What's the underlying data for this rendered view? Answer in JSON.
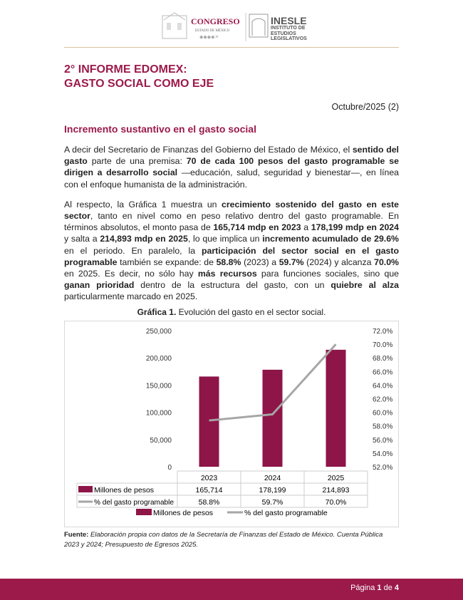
{
  "header": {
    "logo_congreso": "CONGRESO",
    "logo_congreso_sub": "ESTADO DE MÉXICO",
    "logo_inesle": "INESLE",
    "logo_inesle_sub": "INSTITUTO DE ESTUDIOS LEGISLATIVOS"
  },
  "title_line1": "2° INFORME EDOMEX:",
  "title_line2": "GASTO SOCIAL COMO EJE",
  "date": "Octubre/2025 (2)",
  "section_title": "Incremento sustantivo en el gasto social",
  "para1": [
    "A decir del Secretario de Finanzas del Gobierno del Estado de México, el ",
    "sentido del gasto",
    " parte de una premisa: ",
    "70 de cada 100 pesos del gasto programable se dirigen a desarrollo social",
    " —educación, salud, seguridad y bienestar—, en línea con el enfoque humanista de la administración."
  ],
  "para2": [
    "Al respecto, la Gráfica 1 muestra un ",
    "crecimiento sostenido del gasto en este sector",
    ", tanto en nivel como en peso relativo dentro del gasto programable. En términos absolutos, el monto pasa de ",
    "165,714 mdp en 2023",
    " a ",
    "178,199 mdp en 2024",
    " y salta a ",
    "214,893 mdp en 2025",
    ", lo que implica un ",
    "incremento acumulado de 29.6%",
    " en el periodo. En paralelo, la ",
    "participación del sector social en el gasto programable",
    " también se expande: de ",
    "58.8%",
    " (2023) a ",
    "59.7%",
    " (2024) y alcanza ",
    "70.0%",
    " en 2025. Es decir, no sólo hay ",
    "más recursos",
    " para funciones sociales, sino que ",
    "ganan prioridad",
    " dentro de la estructura del gasto, con un ",
    "quiebre al alza",
    " particularmente marcado en 2025."
  ],
  "caption_bold": "Gráfica 1.",
  "caption_text": " Evolución del gasto en el sector social.",
  "chart_data": {
    "type": "bar+line",
    "categories": [
      "2023",
      "2024",
      "2025"
    ],
    "series": [
      {
        "name": "Millones de pesos",
        "type": "bar",
        "axis": "left",
        "values": [
          165714,
          178199,
          214893
        ],
        "labels": [
          "165,714",
          "178,199",
          "214,893"
        ],
        "color": "#8e1548"
      },
      {
        "name": "% del gasto programable",
        "type": "line",
        "axis": "right",
        "values": [
          58.8,
          59.7,
          70.0
        ],
        "labels": [
          "58.8%",
          "59.7%",
          "70.0%"
        ],
        "color": "#a6a6a6"
      }
    ],
    "y_left": {
      "range": [
        0,
        250000
      ],
      "ticks": [
        "0",
        "50,000",
        "100,000",
        "150,000",
        "200,000",
        "250,000"
      ]
    },
    "y_right": {
      "range": [
        52,
        72
      ],
      "ticks": [
        "52.0%",
        "54.0%",
        "56.0%",
        "58.0%",
        "60.0%",
        "62.0%",
        "64.0%",
        "66.0%",
        "68.0%",
        "70.0%",
        "72.0%"
      ]
    },
    "data_table": true,
    "legend": "bottom",
    "grid": false
  },
  "source_label": "Fuente:",
  "source_text": " Elaboración propia con datos de la Secretaría de Finanzas del Estado de México. Cuenta Pública 2023 y 2024; Presupuesto de Egresos 2025.",
  "footer": {
    "page_prefix": "Página ",
    "page": "1",
    "of": " de ",
    "total": "4"
  }
}
